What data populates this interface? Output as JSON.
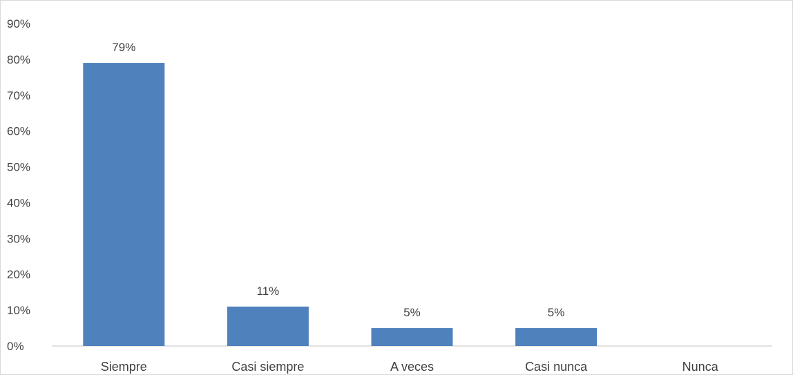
{
  "chart_data": {
    "type": "bar",
    "categories": [
      "Siempre",
      "Casi siempre",
      "A veces",
      "Casi nunca",
      "Nunca"
    ],
    "values": [
      79,
      11,
      5,
      5,
      0
    ],
    "data_labels": [
      "79%",
      "11%",
      "5%",
      "5%",
      ""
    ],
    "title": "",
    "xlabel": "",
    "ylabel": "",
    "ylim": [
      0,
      90
    ],
    "yticks": [
      "0%",
      "10%",
      "20%",
      "30%",
      "40%",
      "50%",
      "60%",
      "70%",
      "80%",
      "90%"
    ],
    "grid": false,
    "legend": "none",
    "bar_color": "#4f81bd"
  }
}
